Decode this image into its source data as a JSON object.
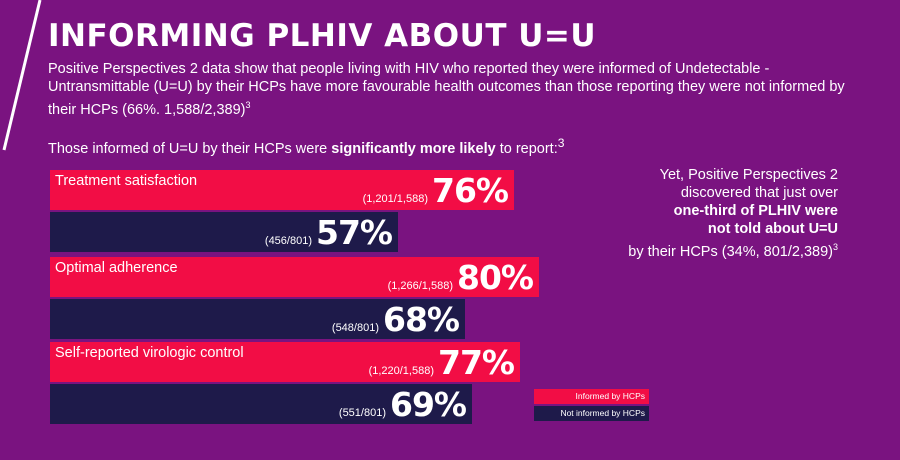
{
  "title": "INFORMING PLHIV ABOUT U=U",
  "intro": {
    "text": "Positive Perspectives 2 data show that people living with HIV who reported they were informed of Undetectable - Untransmittable (U=U) by their HCPs have more favourable health outcomes than those reporting they were not informed by their HCPs (66%. 1,588/2,389)",
    "ref": "3"
  },
  "lead": {
    "before": "Those informed of U=U by their HCPs were ",
    "bold": "significantly more likely",
    "after": " to report:",
    "ref": "3"
  },
  "chart_data": {
    "type": "bar",
    "orientation": "horizontal",
    "categories": [
      "Treatment satisfaction",
      "Optimal adherence",
      "Self-reported virologic control"
    ],
    "series": [
      {
        "name": "Informed by HCPs",
        "values": [
          76,
          80,
          77
        ],
        "counts": [
          "(1,201/1,588)",
          "(1,266/1,588)",
          "(1,220/1,588)"
        ],
        "color": "#f20d45"
      },
      {
        "name": "Not informed by HCPs",
        "values": [
          57,
          68,
          69
        ],
        "counts": [
          "(456/801)",
          "(548/801)",
          "(551/801)"
        ],
        "color": "#1e1a4a"
      }
    ],
    "unit": "%",
    "xlim": [
      0,
      100
    ]
  },
  "right_note": {
    "line1": "Yet, Positive Perspectives 2",
    "line2": "discovered that just over",
    "bold1": "one-third of PLHIV were",
    "bold2": "not told about U=U",
    "line3": "by their HCPs (34%, 801/2,389)",
    "ref": "3"
  },
  "legend": {
    "informed": "Informed by HCPs",
    "not_informed": "Not informed by HCPs"
  },
  "colors": {
    "background": "#7a1380",
    "informed": "#f20d45",
    "not_informed": "#1e1a4a",
    "text": "#ffffff"
  }
}
